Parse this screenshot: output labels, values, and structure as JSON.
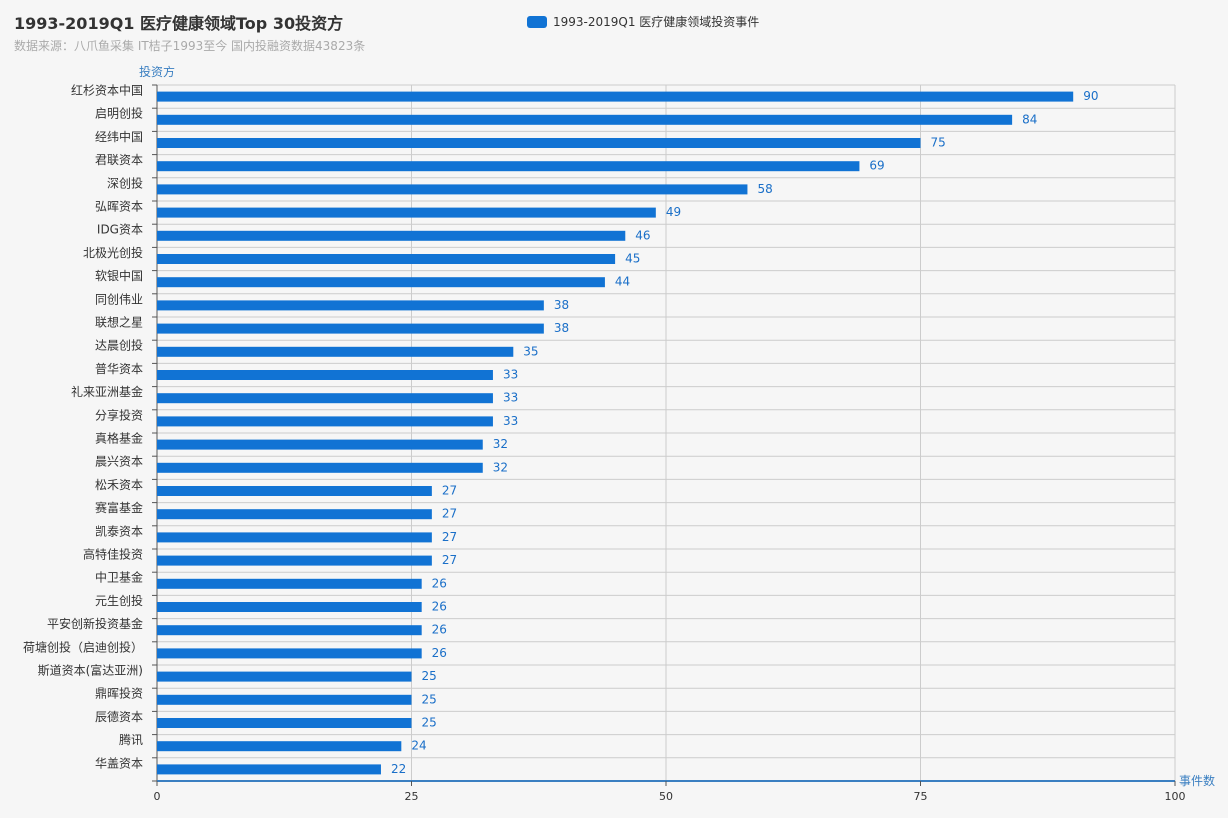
{
  "chart_data": {
    "type": "bar",
    "orientation": "horizontal",
    "title": "1993-2019Q1 医疗健康领域Top 30投资方",
    "subtitle": "数据来源：八爪鱼采集 IT桔子1993至今 国内投融资数据43823条",
    "xlabel": "事件数",
    "ylabel": "投资方",
    "xlim": [
      0,
      100
    ],
    "x_ticks": [
      0,
      25,
      50,
      75,
      100
    ],
    "grid": true,
    "legend_position": "top-center",
    "categories": [
      "红杉资本中国",
      "启明创投",
      "经纬中国",
      "君联资本",
      "深创投",
      "弘晖资本",
      "IDG资本",
      "北极光创投",
      "软银中国",
      "同创伟业",
      "联想之星",
      "达晨创投",
      "普华资本",
      "礼来亚洲基金",
      "分享投资",
      "真格基金",
      "晨兴资本",
      "松禾资本",
      "赛富基金",
      "凯泰资本",
      "高特佳投资",
      "中卫基金",
      "元生创投",
      "平安创新投资基金",
      "荷塘创投（启迪创投）",
      "斯道资本(富达亚洲)",
      "鼎晖投资",
      "辰德资本",
      "腾讯",
      "华盖资本"
    ],
    "series": [
      {
        "name": "1993-2019Q1 医疗健康领域投资事件",
        "color": "#1173d4",
        "values": [
          90,
          84,
          75,
          69,
          58,
          49,
          46,
          45,
          44,
          38,
          38,
          35,
          33,
          33,
          33,
          32,
          32,
          27,
          27,
          27,
          27,
          26,
          26,
          26,
          26,
          25,
          25,
          25,
          24,
          22
        ]
      }
    ]
  },
  "colors": {
    "bar": "#1173d4",
    "axis": "#555555",
    "grid": "#cccccc",
    "axis_name": "#3a7fc1",
    "label": "#1a6fc8"
  }
}
